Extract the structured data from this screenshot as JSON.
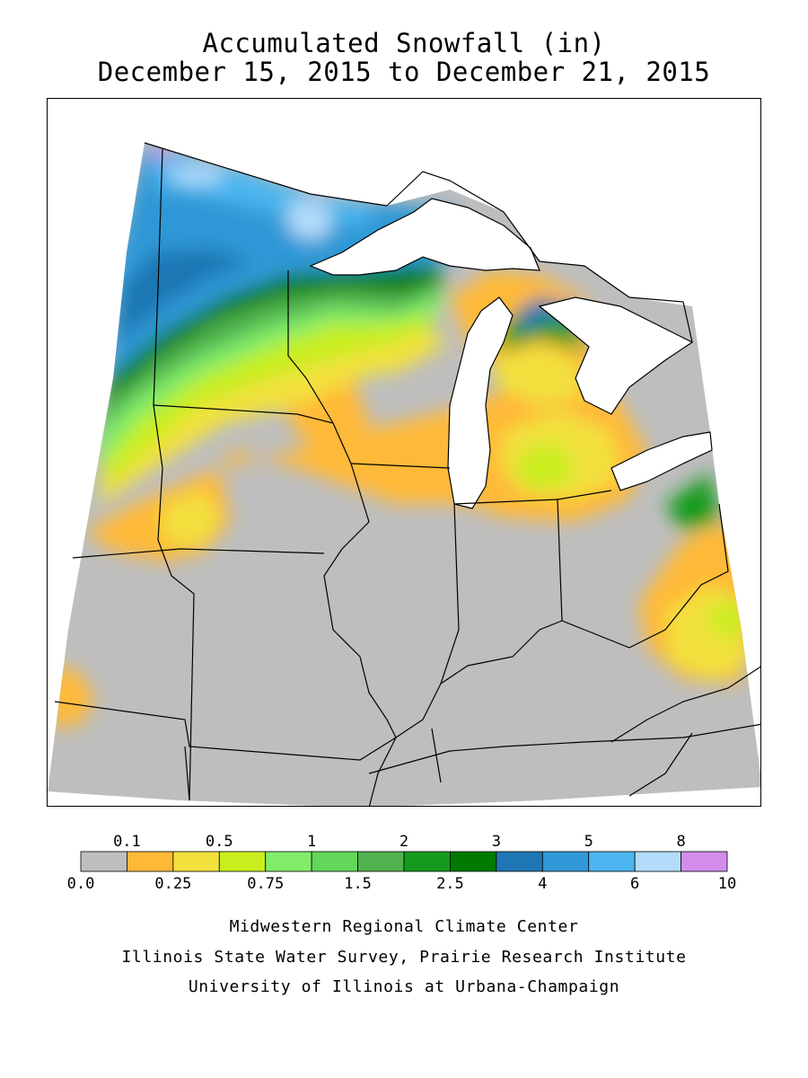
{
  "title": {
    "line1": "Accumulated Snowfall (in)",
    "line2": "December 15, 2015 to December 21, 2015"
  },
  "legend": {
    "upper_labels": [
      "0.1",
      "0.5",
      "1",
      "2",
      "3",
      "5",
      "8"
    ],
    "lower_labels": [
      "0.0",
      "0.25",
      "0.75",
      "1.5",
      "2.5",
      "4",
      "6",
      "10"
    ],
    "colors": [
      "#bebebe",
      "#ffb937",
      "#f2e13d",
      "#c8ee1e",
      "#80ec6a",
      "#62d75a",
      "#4fb24f",
      "#149b1e",
      "#007a00",
      "#1e77b4",
      "#2f98d6",
      "#4cb5ef",
      "#b3dcfa",
      "#d28ceb"
    ]
  },
  "credits": {
    "line1": "Midwestern Regional Climate Center",
    "line2": "Illinois State Water Survey, Prairie Research Institute",
    "line3": "University of Illinois at Urbana-Champaign"
  }
}
